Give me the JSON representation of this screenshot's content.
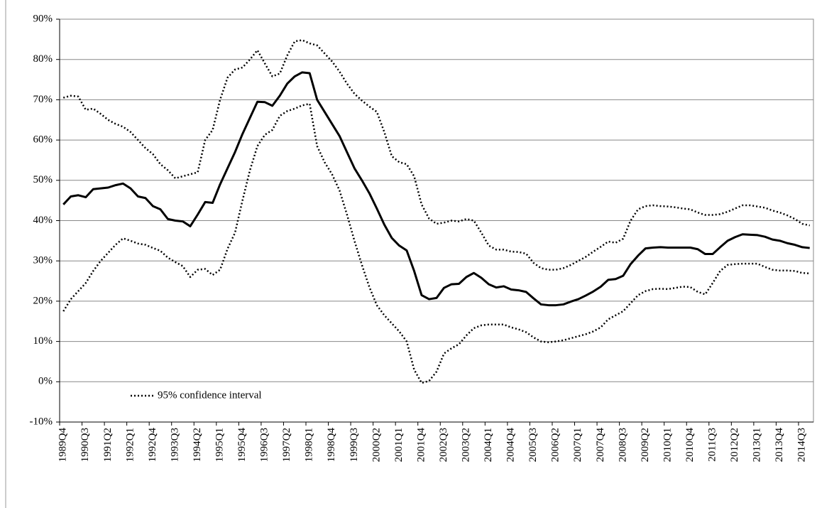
{
  "chart_data": {
    "type": "line",
    "categories": [
      "1989Q4",
      null,
      null,
      "1990Q3",
      null,
      null,
      "1991Q2",
      null,
      null,
      "1992Q1",
      null,
      null,
      "1992Q4",
      null,
      null,
      "1993Q3",
      null,
      null,
      "1994Q2",
      null,
      null,
      "1995Q1",
      null,
      null,
      "1995Q4",
      null,
      null,
      "1996Q3",
      null,
      null,
      "1997Q2",
      null,
      null,
      "1998Q1",
      null,
      null,
      "1998Q4",
      null,
      null,
      "1999Q3",
      null,
      null,
      "2000Q2",
      null,
      null,
      "2001Q1",
      null,
      null,
      "2001Q4",
      null,
      null,
      "2002Q3",
      null,
      null,
      "2003Q2",
      null,
      null,
      "2004Q1",
      null,
      null,
      "2004Q4",
      null,
      null,
      "2005Q3",
      null,
      null,
      "2006Q2",
      null,
      null,
      "2007Q1",
      null,
      null,
      "2007Q4",
      null,
      null,
      "2008Q3",
      null,
      null,
      "2009Q2",
      null,
      null,
      "2010Q1",
      null,
      null,
      "2010Q4",
      null,
      null,
      "2011Q3",
      null,
      null,
      "2012Q2",
      null,
      null,
      "2013Q1",
      null,
      null,
      "2013Q4",
      null,
      null,
      "2014Q3",
      null
    ],
    "series": [
      {
        "color": "#000000",
        "style": "solid",
        "values": [
          44,
          46,
          46.3,
          45.8,
          47.8,
          48,
          48.2,
          48.8,
          49.2,
          48,
          46,
          45.6,
          43.6,
          42.8,
          40.4,
          40,
          39.8,
          38.6,
          41.5,
          44.6,
          44.4,
          49,
          53,
          57,
          61.5,
          65.5,
          69.5,
          69.4,
          68.5,
          71,
          74,
          75.8,
          76.8,
          76.6,
          70,
          67,
          64,
          61,
          57,
          53,
          50,
          46.8,
          43,
          39,
          35.7,
          33.8,
          32.6,
          27.5,
          21.5,
          20.5,
          20.8,
          23.3,
          24.2,
          24.3,
          26,
          27,
          25.8,
          24.2,
          23.4,
          23.7,
          22.9,
          22.7,
          22.3,
          20.7,
          19.2,
          19,
          19,
          19.2,
          19.9,
          20.5,
          21.4,
          22.4,
          23.6,
          25.3,
          25.5,
          26.3,
          29.2,
          31.3,
          33.1,
          33.3,
          33.4,
          33.3,
          33.3,
          33.3,
          33.3,
          32.9,
          31.7,
          31.7,
          33.4,
          35,
          35.9,
          36.6,
          36.5,
          36.4,
          36,
          35.3,
          35,
          34.4,
          34,
          33.4,
          33.2
        ]
      },
      {
        "name": "95% confidence interval",
        "color": "#000000",
        "style": "dotted",
        "values": [
          70.5,
          71,
          70.8,
          67.5,
          67.8,
          66.5,
          65,
          64,
          63.3,
          62,
          60,
          58,
          56.5,
          54,
          52.5,
          50.5,
          51,
          51.5,
          52,
          60,
          62.5,
          70,
          75.5,
          77.5,
          78,
          80,
          82.3,
          79,
          75.8,
          76.5,
          81,
          84.5,
          84.8,
          84,
          83.5,
          81.5,
          79.5,
          77,
          74,
          71.5,
          69.8,
          68.3,
          67,
          62,
          56,
          54.5,
          54,
          51,
          44,
          40.5,
          39.2,
          39.5,
          40,
          39.8,
          40.4,
          40,
          37,
          33.8,
          32.8,
          32.8,
          32.3,
          32.2,
          31.8,
          29.5,
          28.2,
          27.8,
          27.8,
          28.2,
          29,
          30,
          31,
          32.3,
          33.5,
          34.8,
          34.5,
          35.5,
          40,
          42.8,
          43.6,
          43.8,
          43.6,
          43.5,
          43.3,
          43,
          42.8,
          42,
          41.4,
          41.4,
          41.6,
          42.2,
          43,
          43.8,
          43.8,
          43.5,
          43.2,
          42.5,
          42,
          41.3,
          40.4,
          39.2,
          38.8
        ]
      },
      {
        "color": "#000000",
        "style": "dotted",
        "values": [
          17.5,
          20.5,
          22.5,
          24.5,
          27.5,
          30,
          32,
          34,
          35.6,
          35,
          34.3,
          34,
          33.2,
          32.5,
          30.8,
          29.7,
          28.7,
          26,
          27.8,
          28,
          26.5,
          27.8,
          33,
          37,
          45,
          52.5,
          58.5,
          61.3,
          62.5,
          66,
          67.2,
          67.8,
          68.6,
          69,
          58.5,
          54.5,
          51.5,
          47.5,
          41.5,
          35,
          29,
          23.5,
          19,
          16.5,
          14.5,
          12.5,
          10,
          3,
          -0.3,
          0.2,
          2.5,
          7,
          8.3,
          9.3,
          11.5,
          13.3,
          14,
          14.2,
          14.2,
          14.2,
          13.5,
          13,
          12.3,
          11,
          10,
          9.8,
          10,
          10.3,
          10.8,
          11.3,
          11.8,
          12.5,
          13.5,
          15.5,
          16.5,
          17.5,
          19.5,
          21.5,
          22.5,
          23,
          23.1,
          23,
          23.3,
          23.6,
          23.5,
          22.3,
          21.7,
          24.5,
          27.5,
          29,
          29.2,
          29.3,
          29.3,
          29.3,
          28.5,
          27.8,
          27.6,
          27.6,
          27.5,
          27,
          26.9
        ]
      }
    ],
    "ylim": [
      -10,
      90
    ],
    "yticks": [
      {
        "value": -10,
        "label": "-10%"
      },
      {
        "value": 0,
        "label": "0%"
      },
      {
        "value": 10,
        "label": "10%"
      },
      {
        "value": 20,
        "label": "20%"
      },
      {
        "value": 30,
        "label": "30%"
      },
      {
        "value": 40,
        "label": "40%"
      },
      {
        "value": 50,
        "label": "50%"
      },
      {
        "value": 60,
        "label": "60%"
      },
      {
        "value": 70,
        "label": "70%"
      },
      {
        "value": 80,
        "label": "80%"
      },
      {
        "value": 90,
        "label": "90%"
      }
    ],
    "grid": true,
    "legend": "lower-left"
  }
}
